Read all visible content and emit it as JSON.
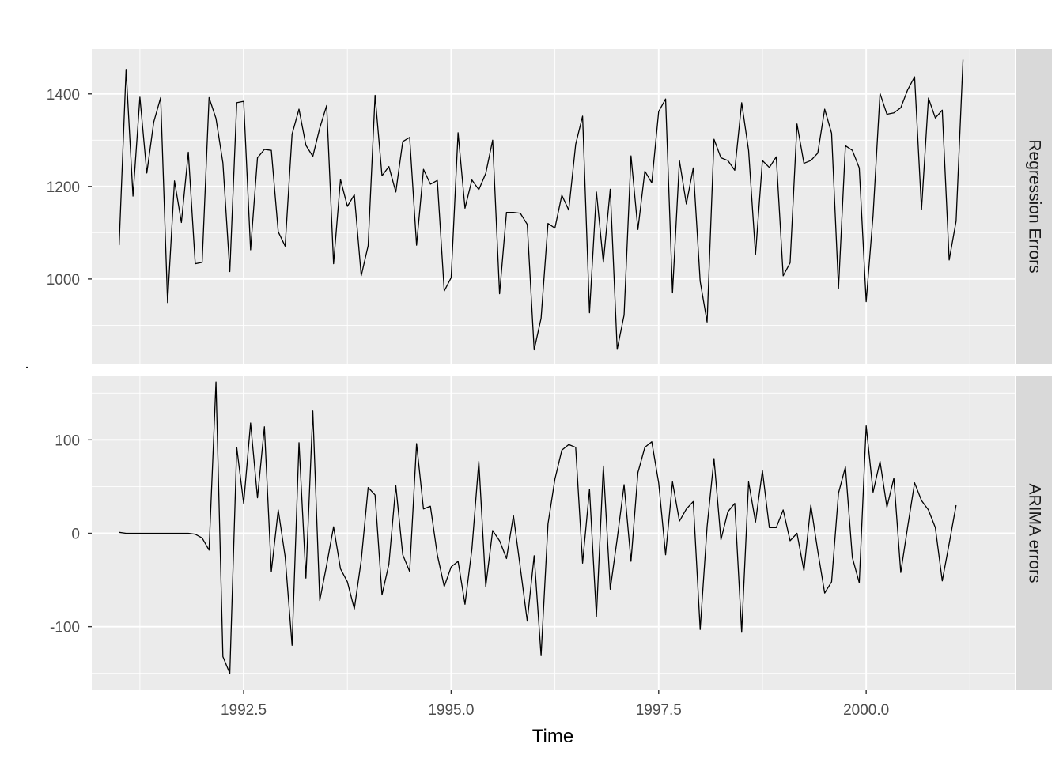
{
  "chart_data": {
    "type": "line",
    "xlabel": "Time",
    "x_ticks": [
      1992.5,
      1995.0,
      1997.5,
      2000.0
    ],
    "x_tick_labels": [
      "1992.5",
      "1995.0",
      "1997.5",
      "2000.0"
    ],
    "xlim": [
      1990.67,
      2001.79
    ],
    "x_start": 1991.0,
    "frequency": 12,
    "grid": true,
    "stray_mark": ".",
    "colors": {
      "panel_background": "#ebebeb",
      "strip_background": "#d9d9d9",
      "grid": "#ffffff",
      "line": "#000000",
      "tick_text": "#4d4d4d"
    },
    "panels": [
      {
        "strip_label": "Regression Errors",
        "ylim": [
          817,
          1497
        ],
        "y_ticks": [
          1000,
          1200,
          1400
        ],
        "y_tick_labels": [
          "1000",
          "1200",
          "1400"
        ],
        "values": [
          1073,
          1453,
          1179,
          1393,
          1229,
          1339,
          1392,
          949,
          1212,
          1122,
          1274,
          1033,
          1036,
          1392,
          1347,
          1251,
          1016,
          1381,
          1384,
          1063,
          1262,
          1280,
          1278,
          1102,
          1071,
          1313,
          1367,
          1289,
          1265,
          1326,
          1375,
          1033,
          1215,
          1157,
          1182,
          1007,
          1072,
          1397,
          1223,
          1243,
          1188,
          1297,
          1306,
          1073,
          1237,
          1205,
          1213,
          974,
          1003,
          1316,
          1153,
          1214,
          1193,
          1228,
          1300,
          968,
          1144,
          1144,
          1142,
          1118,
          847,
          915,
          1120,
          1110,
          1181,
          1149,
          1291,
          1352,
          927,
          1188,
          1036,
          1194,
          848,
          922,
          1266,
          1107,
          1233,
          1208,
          1362,
          1389,
          970,
          1256,
          1162,
          1240,
          995,
          907,
          1302,
          1262,
          1256,
          1235,
          1381,
          1278,
          1053,
          1256,
          1241,
          1264,
          1007,
          1035,
          1335,
          1250,
          1256,
          1272,
          1367,
          1315,
          980,
          1288,
          1278,
          1240,
          951,
          1138,
          1401,
          1356,
          1359,
          1370,
          1409,
          1437,
          1150,
          1391,
          1348,
          1365,
          1041,
          1125,
          1474
        ]
      },
      {
        "strip_label": "ARIMA errors",
        "ylim": [
          -168,
          168
        ],
        "y_ticks": [
          -100,
          0,
          100
        ],
        "y_tick_labels": [
          "-100",
          "0",
          "100"
        ],
        "values": [
          1,
          0,
          0,
          0,
          0,
          0,
          0,
          0,
          0,
          0,
          0,
          -1,
          -5,
          -18,
          162,
          -132,
          -150,
          92,
          32,
          118,
          38,
          114,
          -41,
          25,
          -25,
          -120,
          97,
          -48,
          131,
          -72,
          -34,
          7,
          -38,
          -52,
          -81,
          -29,
          49,
          41,
          -66,
          -33,
          51,
          -23,
          -41,
          96,
          26,
          29,
          -23,
          -57,
          -36,
          -30,
          -76,
          -17,
          77,
          -57,
          3,
          -8,
          -27,
          19,
          -37,
          -94,
          -24,
          -131,
          10,
          58,
          89,
          95,
          92,
          -32,
          47,
          -89,
          72,
          -60,
          -6,
          52,
          -30,
          65,
          92,
          98,
          54,
          -23,
          55,
          13,
          26,
          34,
          -103,
          7,
          80,
          -7,
          23,
          32,
          -106,
          55,
          12,
          67,
          6,
          6,
          25,
          -8,
          0,
          -40,
          30,
          -19,
          -64,
          -52,
          43,
          71,
          -26,
          -53,
          115,
          44,
          77,
          28,
          59,
          -42,
          7,
          54,
          35,
          25,
          6,
          -51,
          -11,
          30
        ]
      }
    ]
  }
}
